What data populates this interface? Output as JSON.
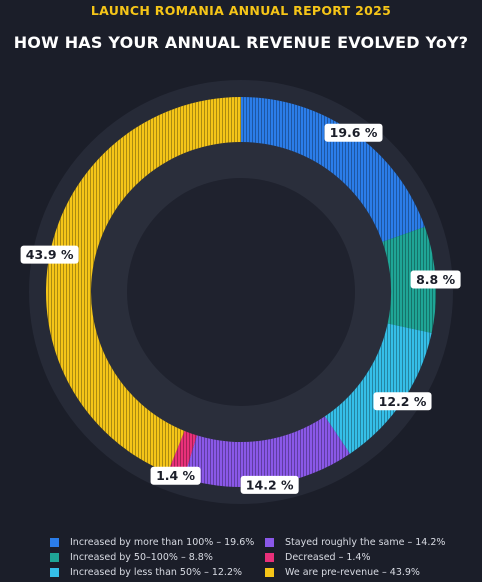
{
  "header": {
    "report_title": "LAUNCH ROMANIA ANNUAL REPORT 2025",
    "chart_title": "HOW HAS YOUR ANNUAL REVENUE EVOLVED YoY?"
  },
  "chart_data": {
    "type": "pie",
    "variant": "donut",
    "title": "HOW HAS YOUR ANNUAL REVENUE EVOLVED YoY?",
    "series": [
      {
        "name": "Increased by more than 100%",
        "value": 19.6,
        "label": "19.6 %",
        "legend": "Increased by more than 100% – 19.6%",
        "color": "#2b7de9"
      },
      {
        "name": "Increased by 50–100%",
        "value": 8.8,
        "label": "8.8 %",
        "legend": "Increased by 50–100% – 8.8%",
        "color": "#1fa596"
      },
      {
        "name": "Increased by less than 50%",
        "value": 12.2,
        "label": "12.2 %",
        "legend": "Increased by less than 50% – 12.2%",
        "color": "#35bfe8"
      },
      {
        "name": "Stayed roughly the same",
        "value": 14.2,
        "label": "14.2 %",
        "legend": "Stayed roughly the same – 14.2%",
        "color": "#8a58e8"
      },
      {
        "name": "Decreased",
        "value": 1.4,
        "label": "1.4 %",
        "legend": "Decreased – 1.4%",
        "color": "#e9307a"
      },
      {
        "name": "We are pre-revenue",
        "value": 43.9,
        "label": "43.9 %",
        "legend": "We are pre-revenue – 43.9%",
        "color": "#f5c518"
      }
    ],
    "legend_placement": "bottom"
  }
}
